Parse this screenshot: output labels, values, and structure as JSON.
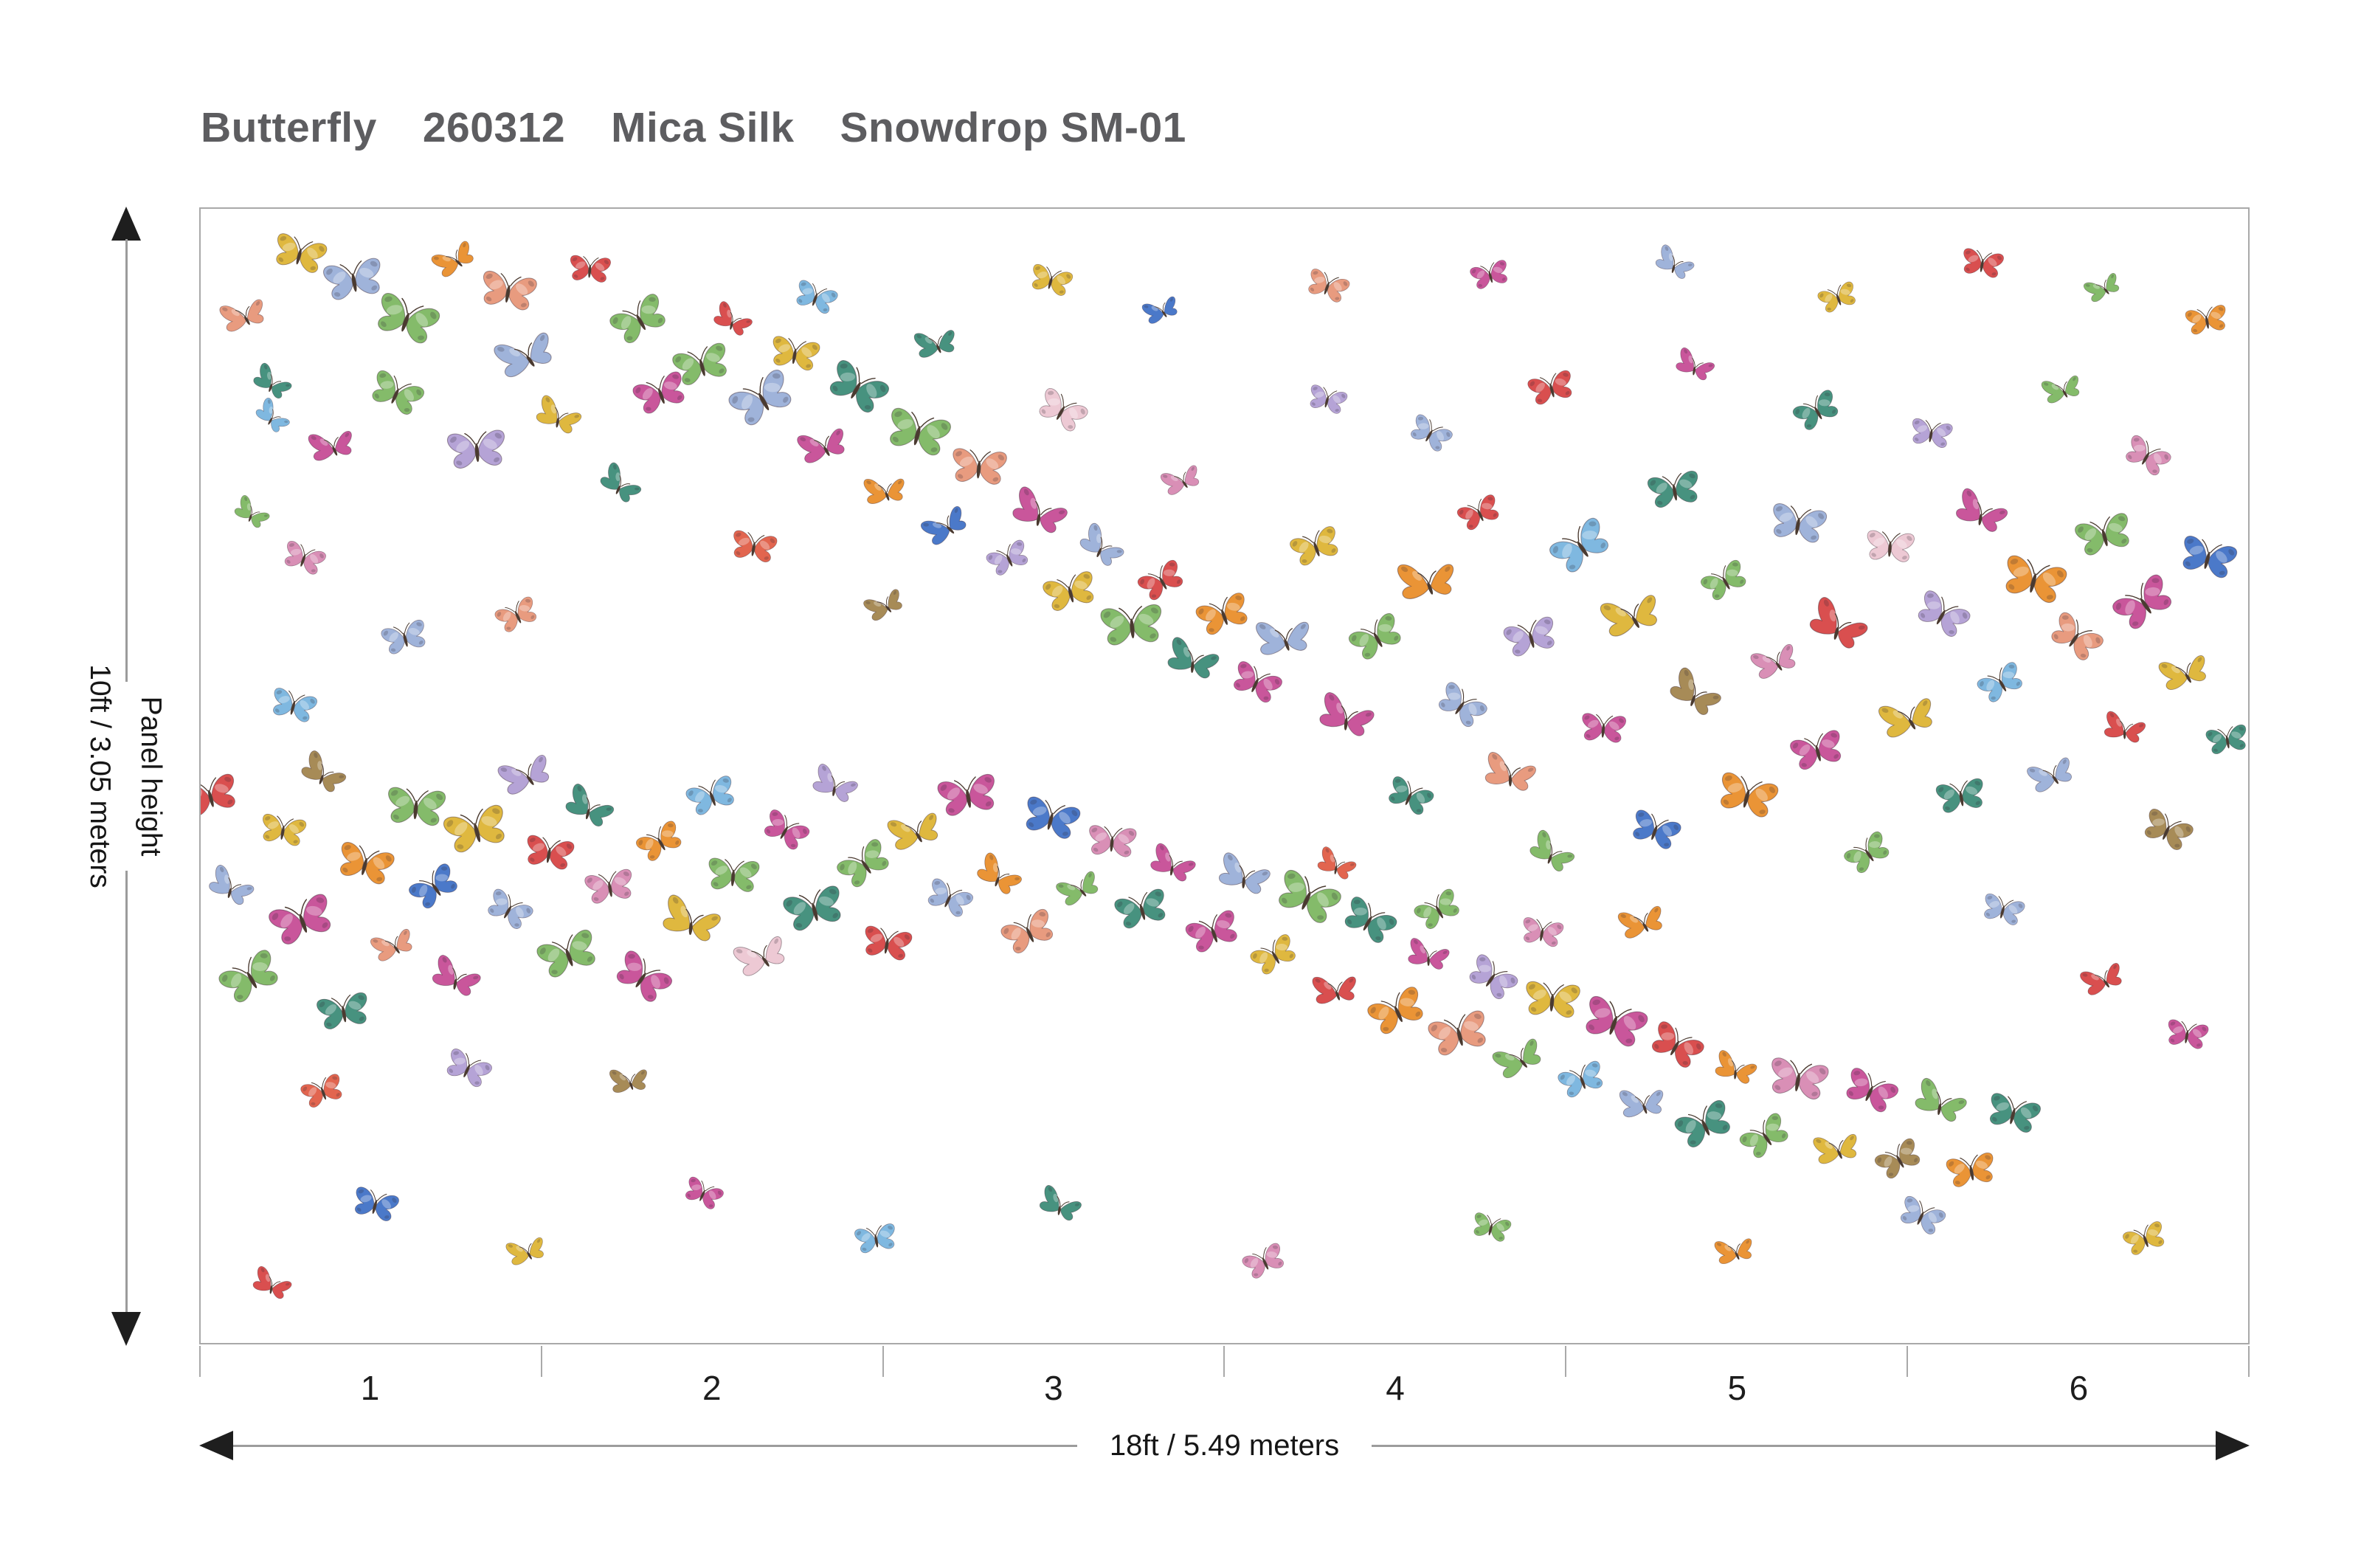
{
  "title": {
    "product": "Butterfly",
    "code": "260312",
    "material": "Mica Silk",
    "colorway": "Snowdrop SM-01"
  },
  "vertical_dimension": {
    "label": "Panel height",
    "value": "10ft / 3.05 meters"
  },
  "horizontal_dimension": {
    "value": "18ft / 5.49 meters"
  },
  "scale": {
    "panel_numbers": [
      "1",
      "2",
      "3",
      "4",
      "5",
      "6"
    ]
  },
  "colors": {
    "title_text": "#5d5d60",
    "dimension_line": "#9c9c9c",
    "arrowhead": "#1e1e1e",
    "panel_border": "#a9a9a9",
    "background": "#ffffff"
  },
  "mural": {
    "palette": [
      "#e89b7f",
      "#dfb83f",
      "#47927f",
      "#9fb3da",
      "#84bb6a",
      "#c9569b",
      "#ea9436",
      "#b5a3d6",
      "#4b79c9",
      "#d94f4f",
      "#7fb8e0",
      "#a78b57",
      "#edc9d4",
      "#e2654f",
      "#d98fb6"
    ],
    "butterflies": [
      [
        0.022,
        0.095,
        0.7,
        -20,
        0,
        1
      ],
      [
        0.048,
        0.042,
        0.75,
        15,
        1,
        0
      ],
      [
        0.035,
        0.155,
        0.6,
        30,
        2,
        1
      ],
      [
        0.075,
        0.065,
        0.85,
        -10,
        3,
        0
      ],
      [
        0.1,
        0.1,
        0.9,
        20,
        4,
        0
      ],
      [
        0.125,
        0.045,
        0.65,
        -35,
        6,
        1
      ],
      [
        0.15,
        0.075,
        0.8,
        10,
        0,
        0
      ],
      [
        0.065,
        0.21,
        0.7,
        -15,
        5,
        1
      ],
      [
        0.095,
        0.165,
        0.75,
        25,
        4,
        0
      ],
      [
        0.16,
        0.13,
        0.9,
        -25,
        3,
        1
      ],
      [
        0.19,
        0.055,
        0.6,
        5,
        9,
        0
      ],
      [
        0.215,
        0.1,
        0.8,
        -30,
        4,
        0
      ],
      [
        0.035,
        0.185,
        0.55,
        40,
        10,
        1
      ],
      [
        0.135,
        0.215,
        0.85,
        -5,
        7,
        0
      ],
      [
        0.175,
        0.185,
        0.7,
        20,
        1,
        1
      ],
      [
        0.225,
        0.165,
        0.75,
        -20,
        5,
        0
      ],
      [
        0.205,
        0.245,
        0.65,
        35,
        2,
        1
      ],
      [
        0.245,
        0.14,
        0.8,
        -15,
        4,
        0
      ],
      [
        0.26,
        0.1,
        0.6,
        25,
        9,
        1
      ],
      [
        0.275,
        0.17,
        0.9,
        -30,
        3,
        0
      ],
      [
        0.29,
        0.13,
        0.7,
        10,
        1,
        0
      ],
      [
        0.305,
        0.21,
        0.75,
        -20,
        5,
        1
      ],
      [
        0.32,
        0.16,
        0.85,
        30,
        2,
        0
      ],
      [
        0.335,
        0.25,
        0.65,
        -10,
        6,
        1
      ],
      [
        0.35,
        0.2,
        0.9,
        15,
        4,
        0
      ],
      [
        0.365,
        0.28,
        0.7,
        -35,
        8,
        1
      ],
      [
        0.38,
        0.23,
        0.8,
        5,
        0,
        0
      ],
      [
        0.395,
        0.31,
        0.6,
        -25,
        7,
        0
      ],
      [
        0.41,
        0.27,
        0.85,
        20,
        5,
        1
      ],
      [
        0.425,
        0.34,
        0.75,
        -15,
        1,
        0
      ],
      [
        0.44,
        0.3,
        0.7,
        35,
        3,
        1
      ],
      [
        0.455,
        0.37,
        0.9,
        -5,
        4,
        0
      ],
      [
        0.47,
        0.33,
        0.65,
        -30,
        9,
        0
      ],
      [
        0.485,
        0.4,
        0.8,
        15,
        2,
        1
      ],
      [
        0.5,
        0.36,
        0.75,
        -20,
        6,
        0
      ],
      [
        0.515,
        0.42,
        0.7,
        25,
        5,
        0
      ],
      [
        0.53,
        0.38,
        0.85,
        -10,
        3,
        1
      ],
      [
        0.3,
        0.08,
        0.6,
        20,
        10,
        0
      ],
      [
        0.36,
        0.12,
        0.65,
        -15,
        2,
        1
      ],
      [
        0.42,
        0.18,
        0.7,
        30,
        12,
        0
      ],
      [
        0.48,
        0.24,
        0.6,
        -25,
        14,
        1
      ],
      [
        0.27,
        0.3,
        0.65,
        10,
        13,
        0
      ],
      [
        0.335,
        0.35,
        0.6,
        -30,
        11,
        1
      ],
      [
        0.545,
        0.3,
        0.7,
        -20,
        1,
        0
      ],
      [
        0.56,
        0.45,
        0.85,
        15,
        5,
        1
      ],
      [
        0.575,
        0.38,
        0.75,
        -30,
        4,
        0
      ],
      [
        0.59,
        0.52,
        0.65,
        25,
        2,
        0
      ],
      [
        0.6,
        0.33,
        0.9,
        -10,
        6,
        1
      ],
      [
        0.615,
        0.44,
        0.7,
        35,
        3,
        0
      ],
      [
        0.625,
        0.27,
        0.6,
        -25,
        9,
        0
      ],
      [
        0.64,
        0.5,
        0.8,
        10,
        0,
        1
      ],
      [
        0.65,
        0.38,
        0.75,
        -15,
        7,
        0
      ],
      [
        0.66,
        0.57,
        0.7,
        30,
        4,
        1
      ],
      [
        0.675,
        0.3,
        0.85,
        -35,
        10,
        0
      ],
      [
        0.685,
        0.46,
        0.65,
        5,
        5,
        0
      ],
      [
        0.7,
        0.36,
        0.9,
        -20,
        1,
        1
      ],
      [
        0.71,
        0.55,
        0.7,
        20,
        8,
        0
      ],
      [
        0.72,
        0.25,
        0.75,
        -10,
        2,
        0
      ],
      [
        0.73,
        0.43,
        0.8,
        30,
        11,
        1
      ],
      [
        0.745,
        0.33,
        0.65,
        -30,
        4,
        0
      ],
      [
        0.755,
        0.52,
        0.85,
        15,
        6,
        0
      ],
      [
        0.77,
        0.4,
        0.7,
        -25,
        14,
        1
      ],
      [
        0.78,
        0.28,
        0.8,
        10,
        3,
        0
      ],
      [
        0.79,
        0.48,
        0.75,
        -15,
        5,
        0
      ],
      [
        0.8,
        0.37,
        0.9,
        25,
        9,
        1
      ],
      [
        0.815,
        0.57,
        0.65,
        -35,
        4,
        0
      ],
      [
        0.825,
        0.3,
        0.7,
        5,
        12,
        0
      ],
      [
        0.835,
        0.45,
        0.85,
        -20,
        1,
        1
      ],
      [
        0.85,
        0.36,
        0.75,
        30,
        7,
        0
      ],
      [
        0.86,
        0.52,
        0.7,
        -10,
        2,
        0
      ],
      [
        0.87,
        0.27,
        0.8,
        20,
        5,
        1
      ],
      [
        0.88,
        0.42,
        0.65,
        -30,
        10,
        0
      ],
      [
        0.895,
        0.33,
        0.9,
        15,
        6,
        0
      ],
      [
        0.905,
        0.5,
        0.7,
        -25,
        3,
        1
      ],
      [
        0.915,
        0.38,
        0.75,
        35,
        0,
        0
      ],
      [
        0.93,
        0.29,
        0.8,
        -15,
        4,
        0
      ],
      [
        0.94,
        0.46,
        0.65,
        10,
        9,
        1
      ],
      [
        0.95,
        0.35,
        0.85,
        -35,
        5,
        0
      ],
      [
        0.96,
        0.55,
        0.7,
        25,
        11,
        0
      ],
      [
        0.97,
        0.41,
        0.75,
        -20,
        1,
        1
      ],
      [
        0.98,
        0.31,
        0.8,
        15,
        8,
        0
      ],
      [
        0.99,
        0.47,
        0.6,
        -10,
        2,
        0
      ],
      [
        0.555,
        0.58,
        0.6,
        20,
        13,
        1
      ],
      [
        0.605,
        0.62,
        0.65,
        -30,
        4,
        0
      ],
      [
        0.655,
        0.64,
        0.6,
        10,
        14,
        0
      ],
      [
        0.705,
        0.63,
        0.7,
        -20,
        6,
        1
      ],
      [
        0.6,
        0.2,
        0.6,
        30,
        3,
        0
      ],
      [
        0.66,
        0.16,
        0.65,
        -15,
        9,
        0
      ],
      [
        0.73,
        0.14,
        0.6,
        20,
        5,
        1
      ],
      [
        0.79,
        0.18,
        0.65,
        -30,
        2,
        0
      ],
      [
        0.845,
        0.2,
        0.6,
        10,
        7,
        0
      ],
      [
        0.91,
        0.16,
        0.6,
        -20,
        4,
        1
      ],
      [
        0.95,
        0.22,
        0.65,
        30,
        14,
        0
      ],
      [
        0.98,
        0.1,
        0.6,
        -10,
        6,
        0
      ],
      [
        0.88,
        0.62,
        0.6,
        15,
        3,
        0
      ],
      [
        0.005,
        0.52,
        0.8,
        -15,
        9,
        0
      ],
      [
        0.015,
        0.6,
        0.7,
        25,
        3,
        1
      ],
      [
        0.025,
        0.68,
        0.85,
        -30,
        4,
        0
      ],
      [
        0.04,
        0.55,
        0.65,
        10,
        1,
        0
      ],
      [
        0.05,
        0.63,
        0.9,
        -20,
        5,
        0
      ],
      [
        0.06,
        0.5,
        0.7,
        30,
        11,
        1
      ],
      [
        0.07,
        0.71,
        0.75,
        -10,
        2,
        0
      ],
      [
        0.08,
        0.58,
        0.8,
        15,
        6,
        0
      ],
      [
        0.095,
        0.65,
        0.65,
        -25,
        0,
        1
      ],
      [
        0.105,
        0.53,
        0.85,
        5,
        4,
        0
      ],
      [
        0.115,
        0.6,
        0.7,
        -35,
        8,
        0
      ],
      [
        0.125,
        0.68,
        0.75,
        20,
        5,
        1
      ],
      [
        0.135,
        0.55,
        0.9,
        -15,
        1,
        0
      ],
      [
        0.15,
        0.62,
        0.65,
        30,
        3,
        0
      ],
      [
        0.16,
        0.5,
        0.8,
        -25,
        7,
        1
      ],
      [
        0.17,
        0.57,
        0.7,
        10,
        9,
        0
      ],
      [
        0.18,
        0.66,
        0.85,
        -20,
        4,
        0
      ],
      [
        0.19,
        0.53,
        0.75,
        25,
        2,
        1
      ],
      [
        0.2,
        0.6,
        0.7,
        -10,
        14,
        0
      ],
      [
        0.215,
        0.68,
        0.8,
        35,
        5,
        0
      ],
      [
        0.225,
        0.56,
        0.65,
        -30,
        6,
        0
      ],
      [
        0.24,
        0.63,
        0.9,
        15,
        1,
        1
      ],
      [
        0.25,
        0.52,
        0.7,
        -20,
        10,
        0
      ],
      [
        0.26,
        0.59,
        0.75,
        5,
        4,
        0
      ],
      [
        0.275,
        0.66,
        0.8,
        -25,
        12,
        1
      ],
      [
        0.285,
        0.55,
        0.65,
        30,
        5,
        0
      ],
      [
        0.3,
        0.62,
        0.85,
        -15,
        2,
        0
      ],
      [
        0.31,
        0.51,
        0.7,
        20,
        7,
        1
      ],
      [
        0.325,
        0.58,
        0.75,
        -35,
        4,
        0
      ],
      [
        0.335,
        0.65,
        0.7,
        10,
        9,
        0
      ],
      [
        0.35,
        0.55,
        0.8,
        -20,
        1,
        1
      ],
      [
        0.365,
        0.61,
        0.65,
        25,
        3,
        0
      ],
      [
        0.375,
        0.52,
        0.85,
        -10,
        5,
        0
      ],
      [
        0.39,
        0.59,
        0.7,
        30,
        6,
        1
      ],
      [
        0.405,
        0.64,
        0.75,
        -25,
        0,
        0
      ],
      [
        0.415,
        0.54,
        0.8,
        15,
        8,
        0
      ],
      [
        0.43,
        0.6,
        0.65,
        -30,
        4,
        1
      ],
      [
        0.445,
        0.56,
        0.7,
        5,
        14,
        0
      ],
      [
        0.46,
        0.62,
        0.75,
        -15,
        2,
        0
      ],
      [
        0.475,
        0.58,
        0.7,
        20,
        5,
        1
      ],
      [
        0.06,
        0.78,
        0.6,
        -20,
        13,
        0
      ],
      [
        0.13,
        0.76,
        0.65,
        25,
        7,
        0
      ],
      [
        0.21,
        0.77,
        0.6,
        -10,
        11,
        1
      ],
      [
        0.045,
        0.44,
        0.65,
        15,
        10,
        0
      ],
      [
        0.495,
        0.64,
        0.75,
        -20,
        5,
        0
      ],
      [
        0.51,
        0.59,
        0.8,
        15,
        3,
        1
      ],
      [
        0.525,
        0.66,
        0.65,
        -30,
        1,
        0
      ],
      [
        0.54,
        0.61,
        0.9,
        25,
        4,
        0
      ],
      [
        0.555,
        0.69,
        0.7,
        -10,
        9,
        1
      ],
      [
        0.57,
        0.63,
        0.75,
        30,
        2,
        0
      ],
      [
        0.585,
        0.71,
        0.8,
        -25,
        6,
        0
      ],
      [
        0.6,
        0.66,
        0.65,
        10,
        5,
        1
      ],
      [
        0.615,
        0.73,
        0.85,
        -15,
        0,
        0
      ],
      [
        0.63,
        0.68,
        0.7,
        35,
        7,
        0
      ],
      [
        0.645,
        0.75,
        0.75,
        -30,
        4,
        1
      ],
      [
        0.66,
        0.7,
        0.8,
        5,
        1,
        0
      ],
      [
        0.675,
        0.77,
        0.65,
        -20,
        10,
        0
      ],
      [
        0.69,
        0.72,
        0.9,
        20,
        5,
        0
      ],
      [
        0.705,
        0.79,
        0.7,
        -10,
        3,
        1
      ],
      [
        0.72,
        0.74,
        0.75,
        30,
        9,
        0
      ],
      [
        0.735,
        0.81,
        0.8,
        -25,
        2,
        0
      ],
      [
        0.75,
        0.76,
        0.65,
        15,
        6,
        1
      ],
      [
        0.765,
        0.82,
        0.7,
        -35,
        4,
        0
      ],
      [
        0.78,
        0.77,
        0.85,
        10,
        14,
        0
      ],
      [
        0.8,
        0.83,
        0.7,
        -15,
        1,
        1
      ],
      [
        0.815,
        0.78,
        0.75,
        25,
        5,
        0
      ],
      [
        0.83,
        0.84,
        0.65,
        -30,
        11,
        0
      ],
      [
        0.85,
        0.79,
        0.8,
        20,
        4,
        1
      ],
      [
        0.865,
        0.85,
        0.7,
        -10,
        6,
        0
      ],
      [
        0.885,
        0.8,
        0.75,
        15,
        2,
        0
      ],
      [
        0.415,
        0.065,
        0.6,
        15,
        1,
        0
      ],
      [
        0.47,
        0.09,
        0.55,
        -25,
        8,
        1
      ],
      [
        0.55,
        0.07,
        0.6,
        20,
        0,
        0
      ],
      [
        0.63,
        0.06,
        0.55,
        -15,
        5,
        0
      ],
      [
        0.72,
        0.05,
        0.6,
        25,
        3,
        1
      ],
      [
        0.8,
        0.08,
        0.55,
        -20,
        1,
        0
      ],
      [
        0.87,
        0.05,
        0.6,
        10,
        9,
        0
      ],
      [
        0.93,
        0.07,
        0.55,
        -30,
        4,
        1
      ],
      [
        0.05,
        0.31,
        0.6,
        20,
        14,
        0
      ],
      [
        0.1,
        0.38,
        0.65,
        -15,
        3,
        0
      ],
      [
        0.025,
        0.27,
        0.55,
        30,
        4,
        1
      ],
      [
        0.155,
        0.36,
        0.6,
        -25,
        0,
        0
      ],
      [
        0.085,
        0.88,
        0.65,
        15,
        8,
        0
      ],
      [
        0.16,
        0.92,
        0.6,
        -20,
        1,
        1
      ],
      [
        0.245,
        0.87,
        0.55,
        25,
        5,
        0
      ],
      [
        0.33,
        0.91,
        0.6,
        -10,
        10,
        0
      ],
      [
        0.42,
        0.88,
        0.65,
        20,
        2,
        1
      ],
      [
        0.52,
        0.93,
        0.6,
        -25,
        14,
        0
      ],
      [
        0.63,
        0.9,
        0.55,
        15,
        4,
        0
      ],
      [
        0.75,
        0.92,
        0.6,
        -15,
        6,
        1
      ],
      [
        0.84,
        0.89,
        0.65,
        25,
        3,
        0
      ],
      [
        0.95,
        0.91,
        0.6,
        -20,
        1,
        0
      ],
      [
        0.97,
        0.73,
        0.6,
        10,
        5,
        0
      ],
      [
        0.93,
        0.68,
        0.65,
        -25,
        9,
        1
      ],
      [
        0.55,
        0.17,
        0.55,
        15,
        7,
        0
      ],
      [
        0.035,
        0.95,
        0.6,
        20,
        9,
        1
      ]
    ]
  }
}
